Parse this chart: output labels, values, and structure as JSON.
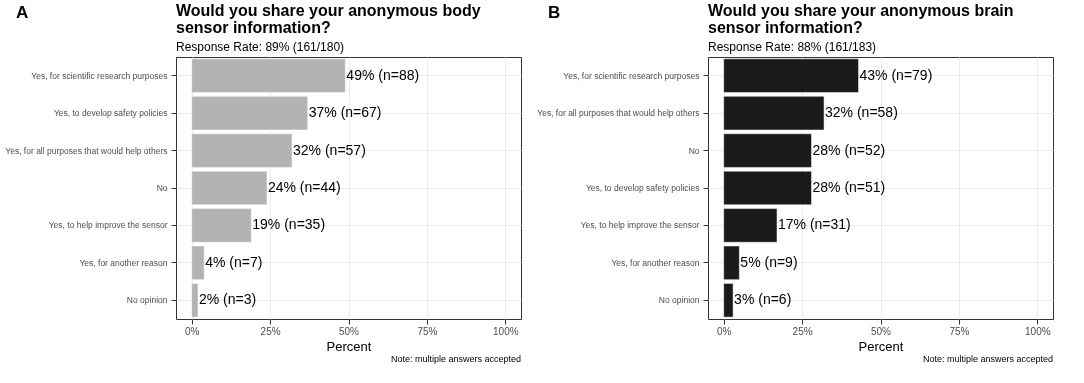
{
  "chart_data": [
    {
      "type": "bar",
      "orientation": "horizontal",
      "title": "Would you share your anonymous body sensor information?",
      "subtitle": "Response Rate: 89% (161/180)",
      "xlabel": "Percent",
      "categories": [
        "Yes, for scientific research purposes",
        "Yes, to develop safety policies",
        "Yes, for all purposes that would help others",
        "No",
        "Yes, to help improve the sensor",
        "Yes, for another reason",
        "No opinion"
      ],
      "values": [
        49,
        37,
        32,
        24,
        19,
        4,
        2
      ],
      "value_labels": [
        "49% (n=88)",
        "37% (n=67)",
        "32% (n=57)",
        "24% (n=44)",
        "19% (n=35)",
        "4% (n=7)",
        "2% (n=3)"
      ],
      "color": "#b3b3b3",
      "xlim": [
        -5,
        105
      ],
      "xticks": [
        {
          "value": 0,
          "label": "0%"
        },
        {
          "value": 25,
          "label": "25%"
        },
        {
          "value": 50,
          "label": "50%"
        },
        {
          "value": 75,
          "label": "75%"
        },
        {
          "value": 100,
          "label": "100%"
        }
      ],
      "grid": true,
      "annotations": [
        "A",
        "Note: multiple answers accepted"
      ]
    },
    {
      "type": "bar",
      "orientation": "horizontal",
      "title": "Would you share your anonymous brain sensor information?",
      "subtitle": "Response Rate: 88% (161/183)",
      "xlabel": "Percent",
      "categories": [
        "Yes, for scientific research purposes",
        "Yes, for all purposes that would help others",
        "No",
        "Yes, to develop safety policies",
        "Yes, to help improve the sensor",
        "Yes, for another reason",
        "No opinion"
      ],
      "values": [
        43,
        32,
        28,
        28,
        17,
        5,
        3
      ],
      "value_labels": [
        "43% (n=79)",
        "32% (n=58)",
        "28% (n=52)",
        "28% (n=51)",
        "17% (n=31)",
        "5% (n=9)",
        "3% (n=6)"
      ],
      "color": "#1a1a1a",
      "xlim": [
        -5,
        105
      ],
      "xticks": [
        {
          "value": 0,
          "label": "0%"
        },
        {
          "value": 25,
          "label": "25%"
        },
        {
          "value": 50,
          "label": "50%"
        },
        {
          "value": 75,
          "label": "75%"
        },
        {
          "value": 100,
          "label": "100%"
        }
      ],
      "grid": true,
      "annotations": [
        "B",
        "Note: multiple answers accepted"
      ]
    }
  ]
}
